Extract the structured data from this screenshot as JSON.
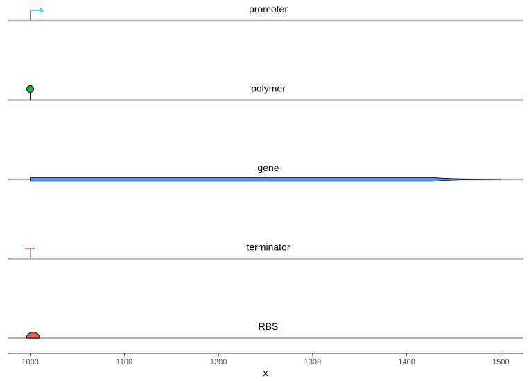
{
  "chart_data": {
    "type": "gene-arrow-map",
    "xlabel": "x",
    "xlim": [
      976,
      1524
    ],
    "x_ticks": [
      1000,
      1100,
      1200,
      1300,
      1400,
      1500
    ],
    "x_tick_labels": [
      "1000",
      "1100",
      "1200",
      "1300",
      "1400",
      "1500"
    ],
    "grid": false,
    "tracks": [
      {
        "label": "promoter",
        "glyph": "promoter",
        "start": 1000,
        "end": 1010,
        "color": "#00BFC4"
      },
      {
        "label": "polymer",
        "glyph": "polymer",
        "start": 1000,
        "end": 1000,
        "color": "#1DB43A"
      },
      {
        "label": "gene",
        "glyph": "gene-arrow",
        "start": 1000,
        "end": 1500,
        "color": "#5B8FF2"
      },
      {
        "label": "terminator",
        "glyph": "terminator",
        "start": 1000,
        "end": 1000,
        "color": "#F8766D"
      },
      {
        "label": "RBS",
        "glyph": "rbs",
        "start": 1000,
        "end": 1006,
        "color": "#E85F58"
      }
    ],
    "track_line_color": "#B3B3B3",
    "axis_color": "#333333"
  }
}
